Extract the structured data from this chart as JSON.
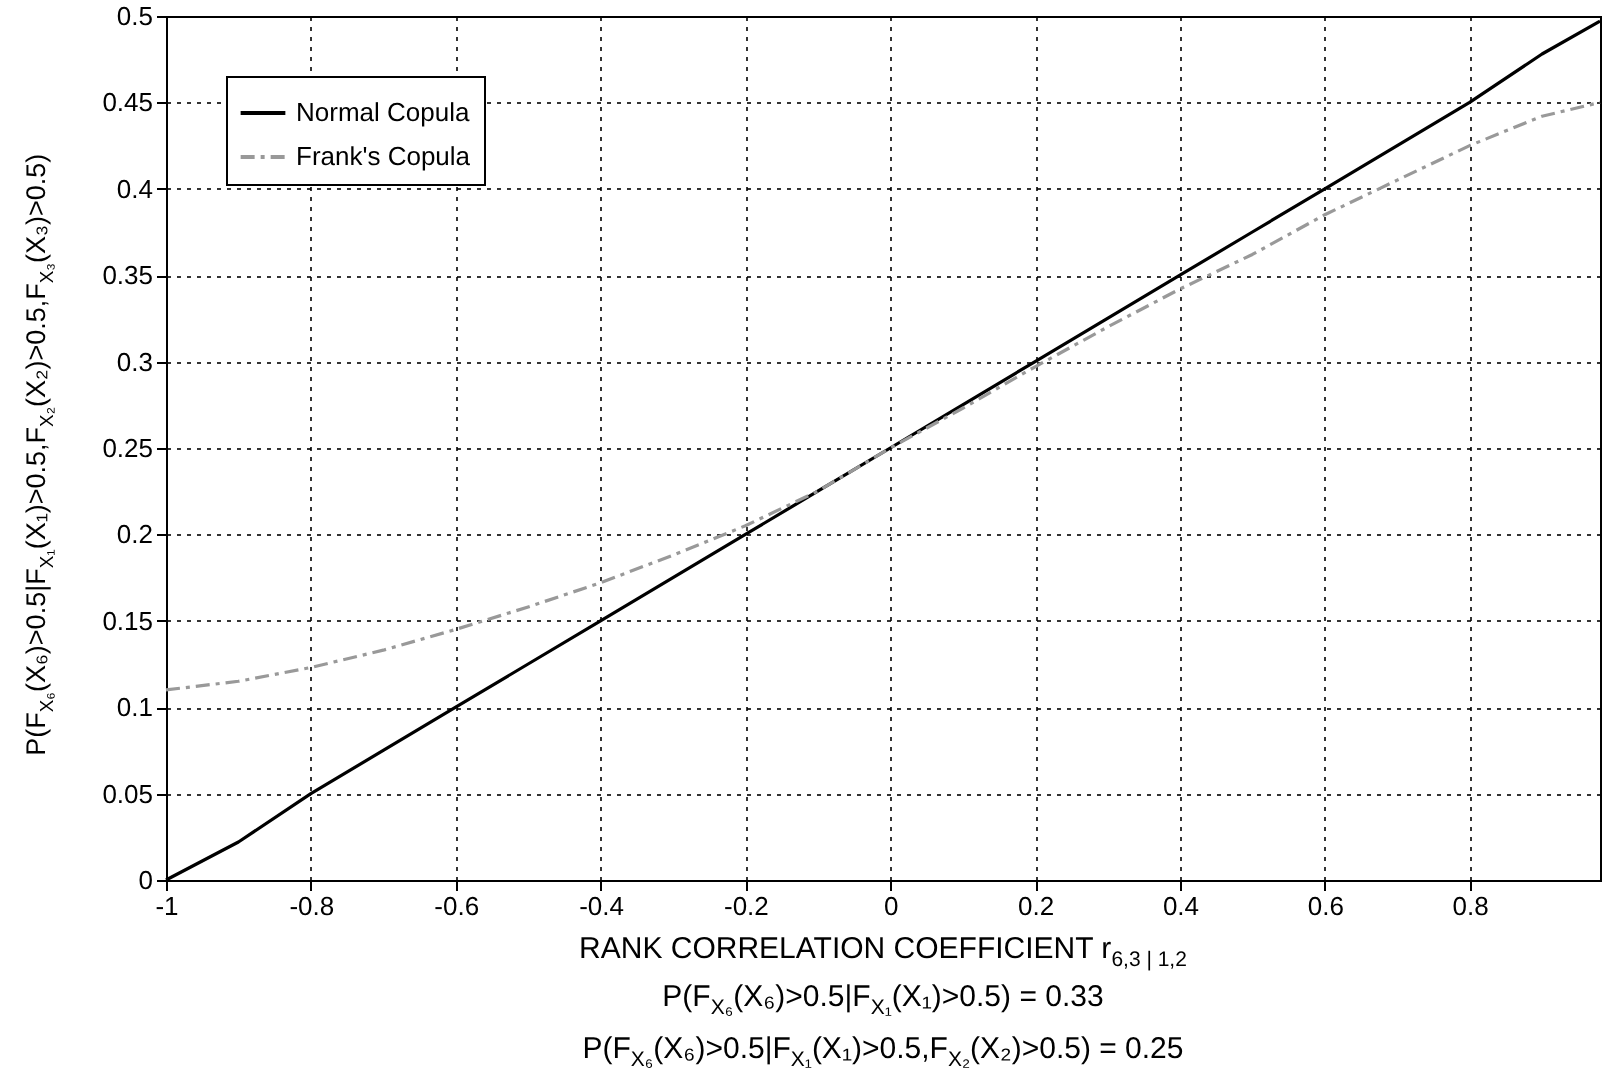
{
  "chart_data": {
    "type": "line",
    "xlabel": "RANK CORRELATION COEFFICIENT r$_{6,3 | 1,2}$",
    "ylabel": "P(F$_{X₆}$(X₆)>0.5|F$_{X₁}$(X₁)>0.5,F$_{X₂}$(X₂)>0.5,F$_{X₃}$(X₃)>0.5)",
    "annotations": [
      "P(F$_{X₆}$(X₆)>0.5|F$_{X₁}$(X₁)>0.5) = 0.33",
      "P(F$_{X₆}$(X₆)>0.5|F$_{X₁}$(X₁)>0.5,F$_{X₂}$(X₂)>0.5) = 0.25"
    ],
    "x": [
      -1,
      -0.9,
      -0.8,
      -0.7,
      -0.6,
      -0.5,
      -0.4,
      -0.3,
      -0.2,
      -0.1,
      0,
      0.1,
      0.2,
      0.3,
      0.4,
      0.5,
      0.6,
      0.7,
      0.8,
      0.9,
      0.98
    ],
    "series": [
      {
        "name": "Normal Copula",
        "color": "#000000",
        "line_style": "solid",
        "values": [
          0,
          0.022,
          0.05,
          0.075,
          0.1,
          0.125,
          0.15,
          0.175,
          0.2,
          0.225,
          0.25,
          0.275,
          0.3,
          0.325,
          0.35,
          0.375,
          0.4,
          0.425,
          0.45,
          0.478,
          0.497
        ]
      },
      {
        "name": "Frank's Copula",
        "color": "#999999",
        "line_style": "dashed",
        "values": [
          0.11,
          0.115,
          0.123,
          0.133,
          0.145,
          0.158,
          0.172,
          0.188,
          0.205,
          0.225,
          0.25,
          0.273,
          0.297,
          0.32,
          0.342,
          0.362,
          0.385,
          0.405,
          0.425,
          0.442,
          0.45
        ]
      }
    ],
    "xlim": [
      -1,
      0.98
    ],
    "ylim": [
      0,
      0.5
    ],
    "xticks": [
      -1,
      -0.8,
      -0.6,
      -0.4,
      -0.2,
      0,
      0.2,
      0.4,
      0.6,
      0.8
    ],
    "yticks": [
      0,
      0.05,
      0.1,
      0.15,
      0.2,
      0.25,
      0.3,
      0.35,
      0.4,
      0.45,
      0.5
    ],
    "grid": true,
    "legend": "top left"
  }
}
